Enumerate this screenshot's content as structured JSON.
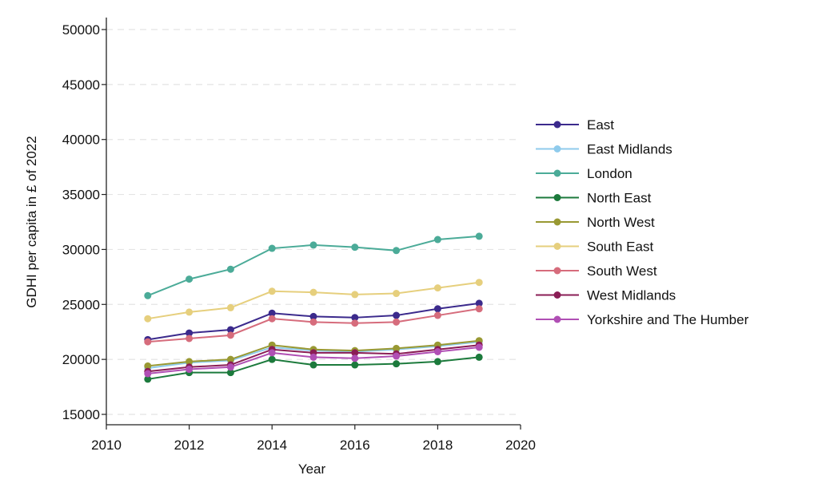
{
  "chart_data": {
    "type": "line",
    "title": "",
    "xlabel": "Year",
    "ylabel": "GDHI per capita in £ of 2022",
    "xlim": [
      2010,
      2020
    ],
    "ylim": [
      15000,
      50000
    ],
    "xticks": [
      "2010",
      "2012",
      "2014",
      "2016",
      "2018",
      "2020"
    ],
    "yticks": [
      "15000",
      "20000",
      "25000",
      "30000",
      "35000",
      "40000",
      "45000",
      "50000"
    ],
    "grid": "horizontal-dashed",
    "legend_position": "right",
    "x": [
      2011,
      2012,
      2013,
      2014,
      2015,
      2016,
      2017,
      2018,
      2019
    ],
    "series": [
      {
        "name": "East",
        "color": "#3b2a8c",
        "values": [
          21800,
          22400,
          22700,
          24200,
          23900,
          23800,
          24000,
          24600,
          25100
        ]
      },
      {
        "name": "East Midlands",
        "color": "#8fcbec",
        "values": [
          19200,
          19700,
          19900,
          21100,
          20800,
          20700,
          20900,
          21200,
          21600
        ]
      },
      {
        "name": "London",
        "color": "#4bab98",
        "values": [
          25800,
          27300,
          28200,
          30100,
          30400,
          30200,
          29900,
          30900,
          31200
        ]
      },
      {
        "name": "North East",
        "color": "#1c7a3c",
        "values": [
          18200,
          18800,
          18800,
          20000,
          19500,
          19500,
          19600,
          19800,
          20200
        ]
      },
      {
        "name": "North West",
        "color": "#999933",
        "values": [
          19400,
          19800,
          20000,
          21300,
          20900,
          20800,
          21000,
          21300,
          21700
        ]
      },
      {
        "name": "South East",
        "color": "#e6cf7d",
        "values": [
          23700,
          24300,
          24700,
          26200,
          26100,
          25900,
          26000,
          26500,
          27000
        ]
      },
      {
        "name": "South West",
        "color": "#d66c7c",
        "values": [
          21600,
          21900,
          22200,
          23700,
          23400,
          23300,
          23400,
          24000,
          24600
        ]
      },
      {
        "name": "West Midlands",
        "color": "#8a1d55",
        "values": [
          18900,
          19300,
          19500,
          20900,
          20600,
          20600,
          20500,
          20900,
          21300
        ]
      },
      {
        "name": "Yorkshire and The Humber",
        "color": "#b04fb4",
        "values": [
          18700,
          19100,
          19300,
          20600,
          20200,
          20100,
          20300,
          20700,
          21100
        ]
      }
    ]
  }
}
